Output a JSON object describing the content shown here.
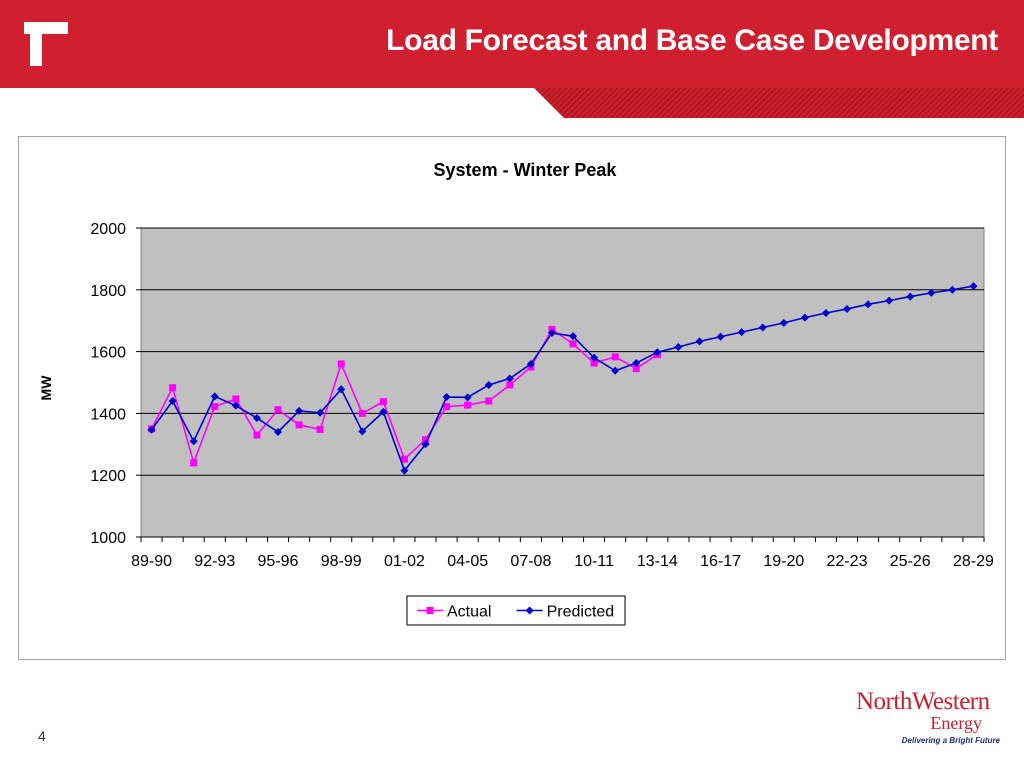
{
  "slide": {
    "title": "Load Forecast and Base Case Development",
    "page_number": "4"
  },
  "brand": {
    "name": "NorthWestern",
    "sub": "Energy",
    "tagline": "Delivering a Bright Future",
    "color": "#c8202f",
    "tagline_color": "#1b2f7a"
  },
  "colors": {
    "header": "#d0202f",
    "plot_bg": "#c0c0c0",
    "actual": "#ff00ff",
    "predicted": "#0000cc"
  },
  "chart_data": {
    "type": "line",
    "title": "System - Winter Peak",
    "ylabel": "MW",
    "xlabel": "",
    "ylim": [
      1000,
      2000
    ],
    "yticks": [
      1000,
      1200,
      1400,
      1600,
      1800,
      2000
    ],
    "grid": true,
    "legend": "bottom",
    "categories": [
      "89-90",
      "90-91",
      "91-92",
      "92-93",
      "93-94",
      "94-95",
      "95-96",
      "96-97",
      "97-98",
      "98-99",
      "99-00",
      "00-01",
      "01-02",
      "02-03",
      "03-04",
      "04-05",
      "05-06",
      "06-07",
      "07-08",
      "08-09",
      "09-10",
      "10-11",
      "11-12",
      "12-13",
      "13-14",
      "14-15",
      "15-16",
      "16-17",
      "17-18",
      "18-19",
      "19-20",
      "20-21",
      "21-22",
      "22-23",
      "23-24",
      "24-25",
      "25-26",
      "26-27",
      "27-28",
      "28-29"
    ],
    "tick_labels": [
      "89-90",
      "92-93",
      "95-96",
      "98-99",
      "01-02",
      "04-05",
      "07-08",
      "10-11",
      "13-14",
      "16-17",
      "19-20",
      "22-23",
      "25-26",
      "28-29"
    ],
    "series": [
      {
        "name": "Actual",
        "color": "#ff00ff",
        "marker": "square",
        "values": [
          1350,
          1483,
          1240,
          1422,
          1447,
          1330,
          1412,
          1363,
          1348,
          1560,
          1400,
          1438,
          1252,
          1315,
          1422,
          1427,
          1440,
          1492,
          1550,
          1672,
          1625,
          1563,
          1583,
          1545,
          1590,
          null,
          null,
          null,
          null,
          null,
          null,
          null,
          null,
          null,
          null,
          null,
          null,
          null,
          null,
          null
        ]
      },
      {
        "name": "Predicted",
        "color": "#0000cc",
        "marker": "diamond",
        "values": [
          1347,
          1440,
          1310,
          1455,
          1425,
          1385,
          1340,
          1408,
          1402,
          1478,
          1342,
          1405,
          1215,
          1300,
          1453,
          1452,
          1492,
          1513,
          1560,
          1660,
          1650,
          1580,
          1538,
          1563,
          1598,
          1615,
          1633,
          1648,
          1663,
          1678,
          1693,
          1710,
          1725,
          1738,
          1753,
          1765,
          1778,
          1790,
          1800,
          1812
        ]
      }
    ]
  }
}
